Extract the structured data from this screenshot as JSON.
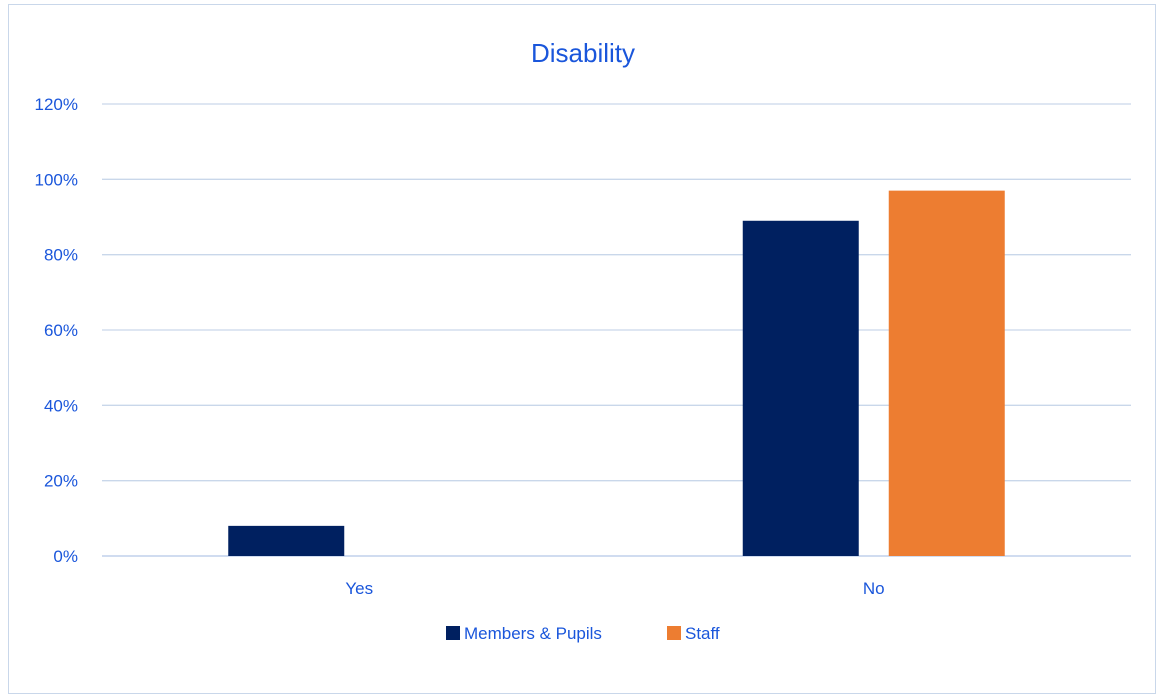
{
  "chart_data": {
    "type": "bar",
    "title": "Disability",
    "categories": [
      "Yes",
      "No"
    ],
    "series": [
      {
        "name": "Members & Pupils",
        "color": "#002060",
        "values": [
          0.08,
          0.89
        ]
      },
      {
        "name": "Staff",
        "color": "#ed7d31",
        "values": [
          0.0,
          0.97
        ]
      }
    ],
    "ylim": [
      0,
      1.2
    ],
    "yticks": [
      0,
      0.2,
      0.4,
      0.6,
      0.8,
      1.0,
      1.2
    ],
    "ytick_labels": [
      "0%",
      "20%",
      "40%",
      "60%",
      "80%",
      "100%",
      "120%"
    ],
    "grid": true,
    "legend_position": "bottom",
    "colors": {
      "text": "#1a56db",
      "grid": "#c9d7ea",
      "axis": "#b4c7e7"
    }
  }
}
